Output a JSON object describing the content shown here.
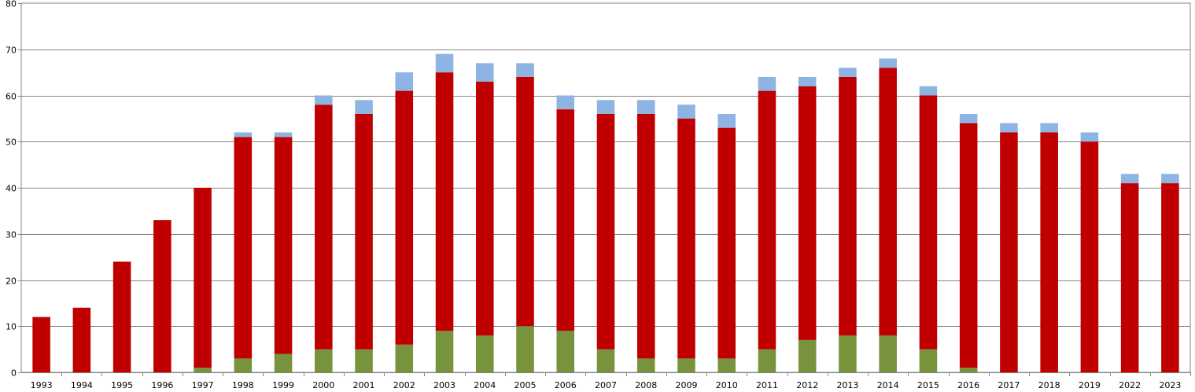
{
  "chart_data": {
    "type": "bar",
    "stacked": true,
    "categories": [
      "1993",
      "1994",
      "1995",
      "1996",
      "1997",
      "1998",
      "1999",
      "2000",
      "2001",
      "2002",
      "2003",
      "2004",
      "2005",
      "2006",
      "2007",
      "2008",
      "2009",
      "2010",
      "2011",
      "2012",
      "2013",
      "2014",
      "2015",
      "2016",
      "2017",
      "2018",
      "2019",
      "2022",
      "2023"
    ],
    "series": [
      {
        "color": "#77933C",
        "values": [
          0,
          0,
          0,
          0,
          1,
          3,
          4,
          5,
          5,
          6,
          9,
          8,
          10,
          9,
          5,
          3,
          3,
          3,
          5,
          7,
          8,
          8,
          5,
          1,
          0,
          0,
          0,
          0,
          0
        ]
      },
      {
        "color": "#C00000",
        "values": [
          12,
          14,
          24,
          33,
          39,
          48,
          47,
          53,
          51,
          55,
          56,
          55,
          54,
          48,
          51,
          53,
          52,
          50,
          56,
          55,
          56,
          58,
          55,
          53,
          52,
          52,
          50,
          41,
          41
        ]
      },
      {
        "color": "#8DB4E2",
        "values": [
          0,
          0,
          0,
          0,
          0,
          1,
          1,
          2,
          3,
          4,
          4,
          4,
          3,
          3,
          3,
          3,
          3,
          3,
          3,
          2,
          2,
          2,
          2,
          2,
          2,
          2,
          2,
          2,
          2
        ]
      }
    ],
    "ylim": [
      0,
      80
    ],
    "yticks": [
      "0",
      "10",
      "20",
      "30",
      "40",
      "50",
      "60",
      "70",
      "80"
    ],
    "grid": true,
    "legend": "none"
  }
}
